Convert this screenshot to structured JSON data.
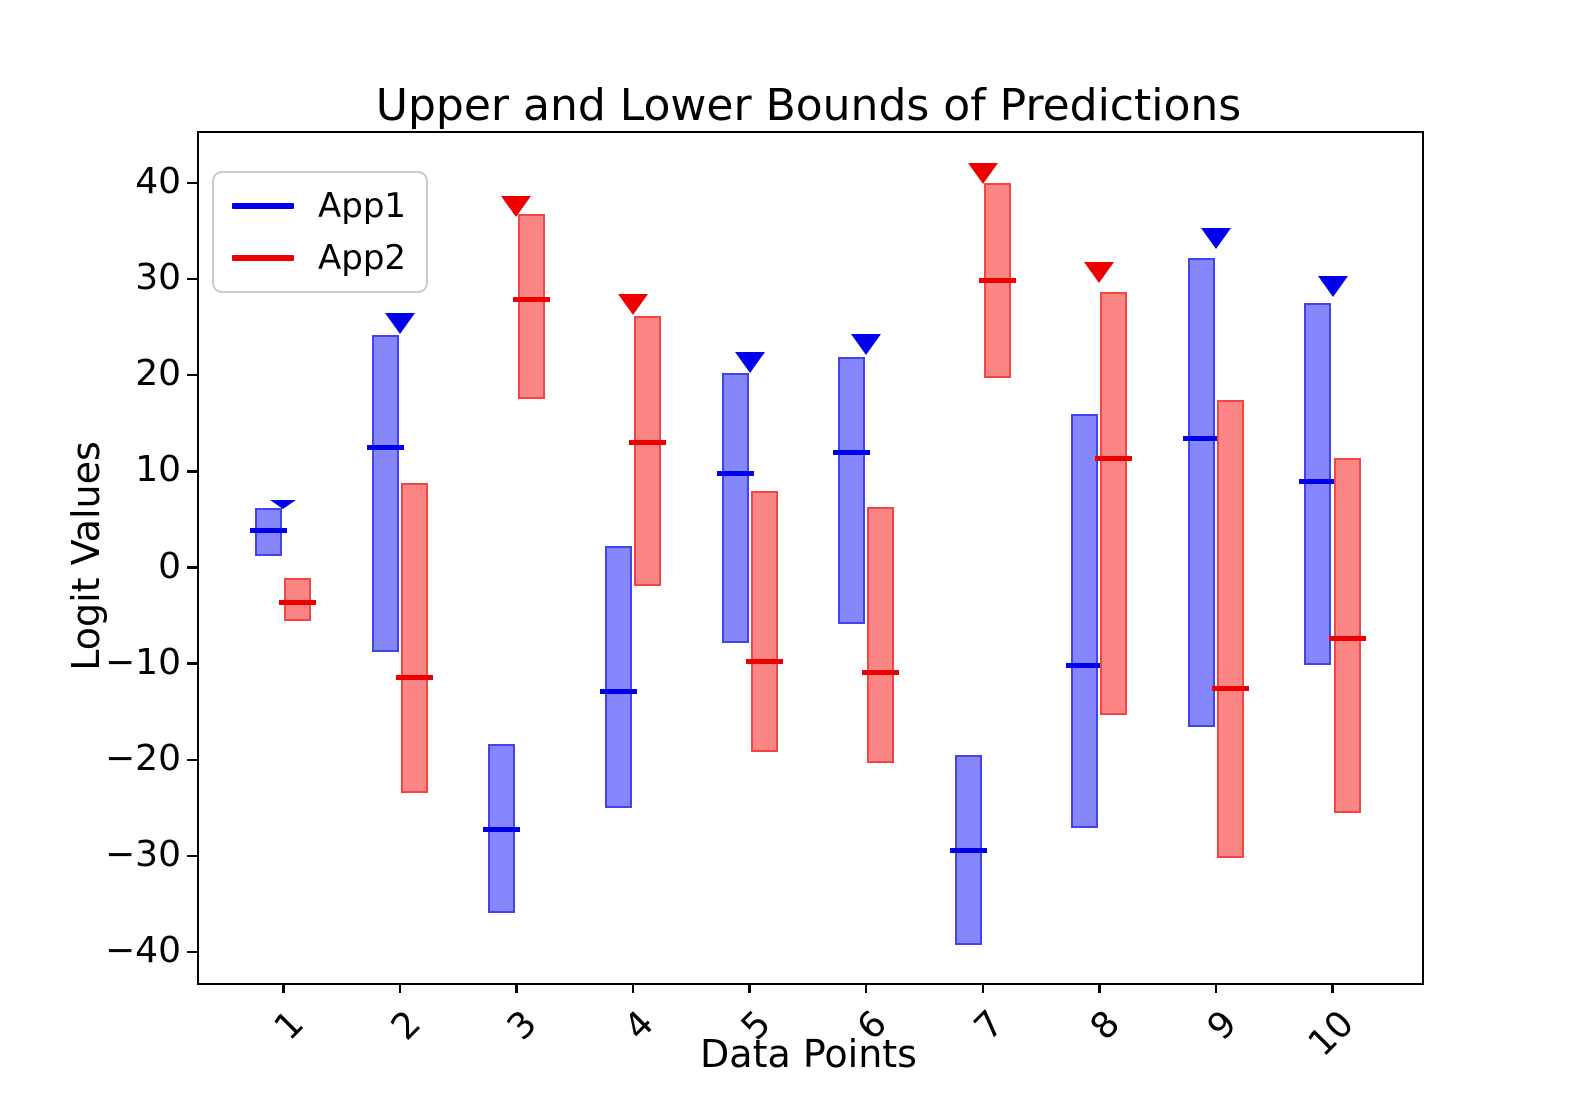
{
  "chart_data": {
    "type": "bar",
    "subtype": "range-bars-with-prediction-lines-and-triangle-markers",
    "title": "Upper and Lower Bounds of Predictions",
    "xlabel": "Data Points",
    "ylabel": "Logit Values",
    "categories": [
      "1",
      "2",
      "3",
      "4",
      "5",
      "6",
      "7",
      "8",
      "9",
      "10"
    ],
    "xlim": [
      0.26,
      10.75
    ],
    "ylim": [
      -43.0,
      45.4
    ],
    "grid": false,
    "legend_position": "upper left",
    "background_color": "#ffffff",
    "spine_color": "#000000",
    "yticks": [
      {
        "value": 40,
        "label": "40"
      },
      {
        "value": 30,
        "label": "30"
      },
      {
        "value": 20,
        "label": "20"
      },
      {
        "value": 10,
        "label": "10"
      },
      {
        "value": 0,
        "label": "0"
      },
      {
        "value": -10,
        "label": "−10"
      },
      {
        "value": -20,
        "label": "−20"
      },
      {
        "value": -30,
        "label": "−30"
      },
      {
        "value": -40,
        "label": "−40"
      }
    ],
    "bar_width": 0.23,
    "pair_offset": 0.125,
    "legend": [
      {
        "label": "App1",
        "color": "#0000ee"
      },
      {
        "label": "App2",
        "color": "#ee0000"
      }
    ],
    "series": [
      {
        "name": "App1",
        "line_color": "#0000ee",
        "fill_color": "#8585fc",
        "edge_color": "#4343ee",
        "x_offset": -0.125,
        "bars": [
          {
            "x": 1,
            "lower": 1.2,
            "upper": 6.2,
            "prediction": 3.9,
            "marker": 6.6,
            "marker_small": true
          },
          {
            "x": 2,
            "lower": -8.8,
            "upper": 24.2,
            "prediction": 12.5,
            "marker": 25.4,
            "marker_small": false
          },
          {
            "x": 3,
            "lower": -35.9,
            "upper": -18.4,
            "prediction": -27.2,
            "marker": null,
            "marker_small": false
          },
          {
            "x": 4,
            "lower": -25.0,
            "upper": 2.2,
            "prediction": -12.9,
            "marker": null,
            "marker_small": false
          },
          {
            "x": 5,
            "lower": -7.8,
            "upper": 20.2,
            "prediction": 9.8,
            "marker": 21.3,
            "marker_small": false
          },
          {
            "x": 6,
            "lower": -5.9,
            "upper": 21.9,
            "prediction": 12.0,
            "marker": 23.2,
            "marker_small": false
          },
          {
            "x": 7,
            "lower": -39.3,
            "upper": -19.5,
            "prediction": -29.4,
            "marker": null,
            "marker_small": false
          },
          {
            "x": 8,
            "lower": -27.1,
            "upper": 16.0,
            "prediction": -10.2,
            "marker": null,
            "marker_small": false
          },
          {
            "x": 9,
            "lower": -16.6,
            "upper": 32.2,
            "prediction": 13.4,
            "marker": 34.2,
            "marker_small": false
          },
          {
            "x": 10,
            "lower": -10.1,
            "upper": 27.5,
            "prediction": 8.9,
            "marker": 29.2,
            "marker_small": false
          }
        ]
      },
      {
        "name": "App2",
        "line_color": "#ee0000",
        "fill_color": "#fc8585",
        "edge_color": "#f64343",
        "x_offset": 0.125,
        "bars": [
          {
            "x": 1,
            "lower": -5.6,
            "upper": -1.1,
            "prediction": -3.6,
            "marker": null,
            "marker_small": false
          },
          {
            "x": 2,
            "lower": -23.4,
            "upper": 8.8,
            "prediction": -11.4,
            "marker": null,
            "marker_small": false
          },
          {
            "x": 3,
            "lower": 17.5,
            "upper": 36.8,
            "prediction": 27.9,
            "marker": 37.6,
            "marker_small": false
          },
          {
            "x": 4,
            "lower": -1.9,
            "upper": 26.2,
            "prediction": 13.0,
            "marker": 27.4,
            "marker_small": false
          },
          {
            "x": 5,
            "lower": -19.2,
            "upper": 8.0,
            "prediction": -9.8,
            "marker": null,
            "marker_small": false
          },
          {
            "x": 6,
            "lower": -20.3,
            "upper": 6.3,
            "prediction": -10.9,
            "marker": null,
            "marker_small": false
          },
          {
            "x": 7,
            "lower": 19.7,
            "upper": 40.0,
            "prediction": 29.9,
            "marker": 41.0,
            "marker_small": false
          },
          {
            "x": 8,
            "lower": -15.3,
            "upper": 28.7,
            "prediction": 11.3,
            "marker": 30.7,
            "marker_small": false
          },
          {
            "x": 9,
            "lower": -30.2,
            "upper": 17.4,
            "prediction": -12.6,
            "marker": null,
            "marker_small": false
          },
          {
            "x": 10,
            "lower": -25.5,
            "upper": 11.4,
            "prediction": -7.4,
            "marker": null,
            "marker_small": false
          }
        ]
      }
    ]
  }
}
